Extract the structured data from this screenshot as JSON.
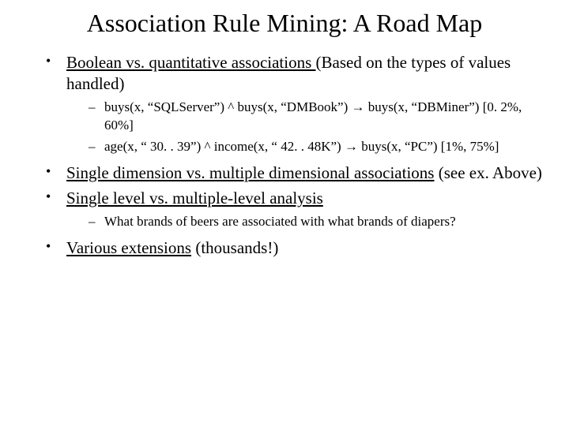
{
  "title": "Association Rule Mining: A Road Map",
  "bullets": {
    "b1_underlined": "Boolean vs. quantitative associations ",
    "b1_rest": "(Based on the types of values handled)",
    "b1_sub1": "buys(x, “SQLServer”) ^ buys(x, “DMBook”) →  buys(x, “DBMiner”) [0. 2%, 60%]",
    "b1_sub2": "age(x, “ 30. . 39”) ^ income(x, “ 42. . 48K”) →  buys(x, “PC”) [1%, 75%]",
    "b2_underlined": "Single dimension vs. multiple dimensional associations",
    "b2_rest": " (see ex. Above)",
    "b3_underlined": "Single level vs. multiple-level analysis",
    "b3_sub1": "What brands of beers are associated with what brands of diapers?",
    "b4_underlined": "Various extensions",
    "b4_rest": " (thousands!)"
  }
}
